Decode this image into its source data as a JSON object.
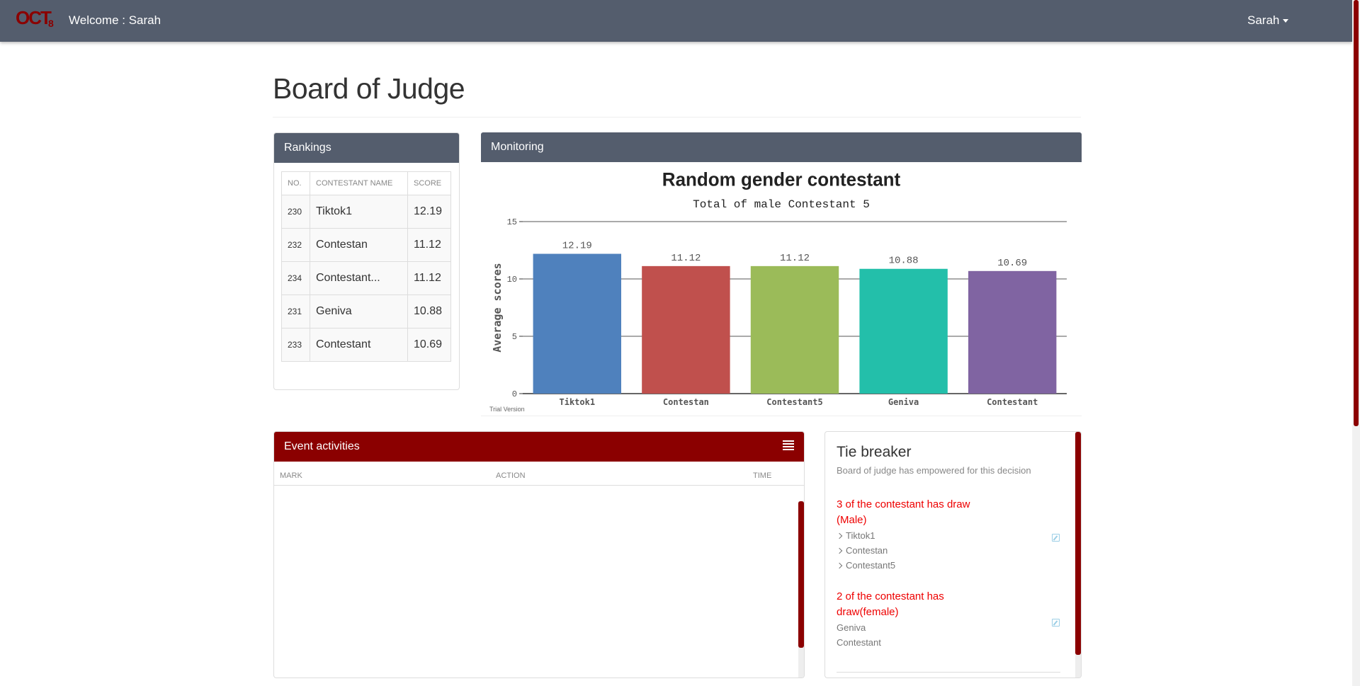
{
  "navbar": {
    "welcome": "Welcome : Sarah",
    "user": "Sarah",
    "logo_text": "OCT8"
  },
  "page": {
    "title": "Board of Judge"
  },
  "rankings": {
    "title": "Rankings",
    "columns": [
      "NO.",
      "CONTESTANT NAME",
      "SCORE"
    ],
    "rows": [
      {
        "no": "230",
        "name": "Tiktok1",
        "score": "12.19"
      },
      {
        "no": "232",
        "name": "Contestan",
        "score": "11.12"
      },
      {
        "no": "234",
        "name": "Contestant...",
        "score": "11.12"
      },
      {
        "no": "231",
        "name": "Geniva",
        "score": "10.88"
      },
      {
        "no": "233",
        "name": "Contestant",
        "score": "10.69"
      }
    ]
  },
  "monitoring": {
    "title": "Monitoring",
    "watermark": "Trial Version"
  },
  "chart_data": {
    "type": "bar",
    "title": "Random gender contestant",
    "subtitle": "Total of male Contestant 5",
    "xlabel": "",
    "ylabel": "Average scores",
    "categories": [
      "Tiktok1",
      "Contestan",
      "Contestant5",
      "Geniva",
      "Contestant"
    ],
    "values": [
      12.19,
      11.12,
      11.12,
      10.88,
      10.69
    ],
    "data_labels": [
      "12.19",
      "11.12",
      "11.12",
      "10.88",
      "10.69"
    ],
    "colors": [
      "#4f81bd",
      "#c0504d",
      "#9bbb59",
      "#23bfaa",
      "#8064a2"
    ],
    "ylim": [
      0,
      15
    ],
    "yticks": [
      0,
      5,
      10,
      15
    ],
    "grid": true
  },
  "events": {
    "title": "Event activities",
    "columns": {
      "mark": "MARK",
      "action": "ACTION",
      "time": "TIME"
    },
    "menu_icon": "list-icon"
  },
  "tie_breaker": {
    "title": "Tie breaker",
    "subtitle": "Board of judge has empowered for this decision",
    "groups": [
      {
        "title": "3 of the contestant has draw (Male)",
        "items": [
          "Tiktok1",
          "Contestan",
          "Contestant5"
        ]
      },
      {
        "title": "2 of the contestant has draw(female)",
        "items": [
          "Geniva",
          "Contestant"
        ]
      }
    ]
  },
  "colors": {
    "navbar": "#545d6d",
    "accent": "#8b0000",
    "tie_text": "#ee0000"
  }
}
